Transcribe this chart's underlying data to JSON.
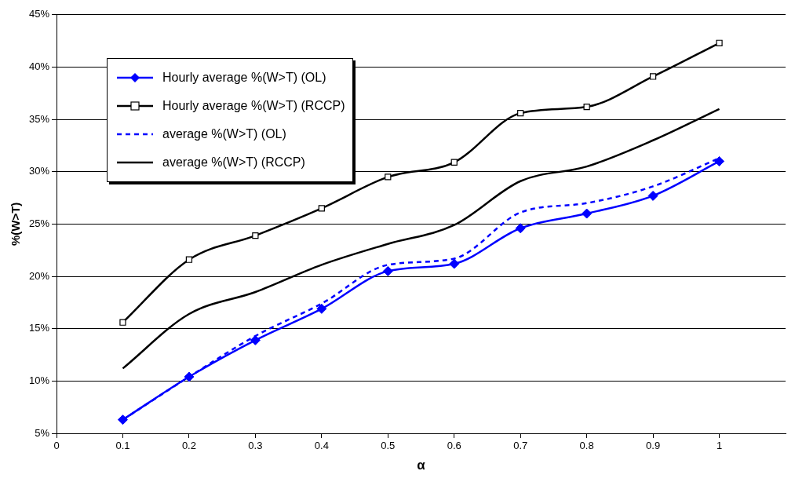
{
  "chart_data": {
    "type": "line",
    "xlabel": "α",
    "ylabel": "%(W>T)",
    "x": [
      0.1,
      0.2,
      0.3,
      0.4,
      0.5,
      0.6,
      0.7,
      0.8,
      0.9,
      1
    ],
    "series": [
      {
        "name": "Hourly average %(W>T) (OL)",
        "color": "#0000ff",
        "marker": "diamond",
        "line_style": "solid",
        "values": [
          6.3,
          10.4,
          13.9,
          16.9,
          20.5,
          21.2,
          24.6,
          26.0,
          27.7,
          31.0
        ]
      },
      {
        "name": "Hourly average %(W>T) (RCCP)",
        "color": "#000000",
        "marker": "square",
        "line_style": "solid",
        "values": [
          15.6,
          21.6,
          23.9,
          26.5,
          29.5,
          30.9,
          35.6,
          36.2,
          39.1,
          42.3
        ]
      },
      {
        "name": "average %(W>T) (OL)",
        "color": "#0000ff",
        "marker": "none",
        "line_style": "dashed",
        "values": [
          6.3,
          10.4,
          14.3,
          17.4,
          21.1,
          21.7,
          26.1,
          27.0,
          28.6,
          31.3
        ]
      },
      {
        "name": "average %(W>T) (RCCP)",
        "color": "#000000",
        "marker": "none",
        "line_style": "solid",
        "values": [
          11.2,
          16.4,
          18.5,
          21.1,
          23.1,
          24.9,
          29.1,
          30.5,
          33.0,
          36.0
        ]
      }
    ],
    "xlim": [
      0,
      1.1
    ],
    "xticks": [
      0,
      0.1,
      0.2,
      0.3,
      0.4,
      0.5,
      0.6,
      0.7,
      0.8,
      0.9,
      1
    ],
    "ylim": [
      5,
      45
    ],
    "yticks": [
      {
        "value": 5,
        "label": "5%"
      },
      {
        "value": 10,
        "label": "10%"
      },
      {
        "value": 15,
        "label": "15%"
      },
      {
        "value": 20,
        "label": "20%"
      },
      {
        "value": 25,
        "label": "25%"
      },
      {
        "value": 30,
        "label": "30%"
      },
      {
        "value": 35,
        "label": "35%"
      },
      {
        "value": 40,
        "label": "40%"
      },
      {
        "value": 45,
        "label": "45%"
      }
    ],
    "grid": "y",
    "legend": "top left"
  }
}
